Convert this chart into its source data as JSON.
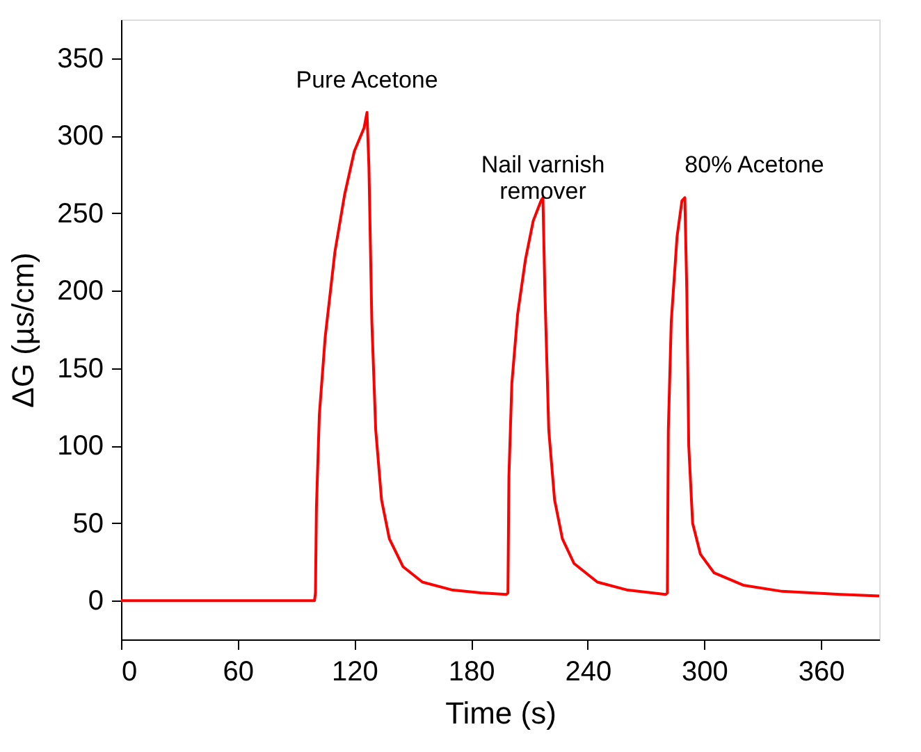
{
  "chart_data": {
    "type": "line",
    "xlabel": "Time (s)",
    "ylabel": "ΔG (µs/cm)",
    "xlim": [
      0,
      390
    ],
    "ylim": [
      -25,
      375
    ],
    "xticks": [
      0,
      60,
      120,
      180,
      240,
      300,
      360
    ],
    "yticks": [
      0,
      50,
      100,
      150,
      200,
      250,
      300,
      350
    ],
    "grid": false,
    "legend": false,
    "marker": "none",
    "line_style": "solid",
    "x": [
      0,
      20,
      40,
      60,
      80,
      99.5,
      100,
      100.5,
      102,
      105,
      110,
      115,
      120,
      125,
      126.5,
      127.5,
      129,
      131,
      134,
      138,
      145,
      155,
      170,
      185,
      198,
      199,
      199.5,
      201,
      204,
      208,
      212,
      216,
      217,
      218,
      220,
      223,
      227,
      233,
      245,
      260,
      280,
      281,
      281.5,
      283,
      286,
      288.5,
      290,
      291,
      292,
      294,
      298,
      305,
      320,
      340,
      370,
      390
    ],
    "series": [
      {
        "color": "#ff0000",
        "values": [
          0,
          0,
          0,
          0,
          0,
          0,
          5,
          60,
          120,
          170,
          225,
          262,
          290,
          305,
          315,
          280,
          180,
          110,
          65,
          40,
          22,
          12,
          7,
          5,
          4,
          5,
          80,
          140,
          185,
          220,
          245,
          258,
          260,
          200,
          110,
          65,
          40,
          24,
          12,
          7,
          4,
          5,
          110,
          180,
          235,
          258,
          260,
          200,
          100,
          50,
          30,
          18,
          10,
          6,
          4,
          3
        ]
      }
    ],
    "annotations": [
      {
        "text": "Pure Acetone",
        "x": 126.5,
        "y": 315
      },
      {
        "text": "Nail varnish\nremover",
        "x": 217,
        "y": 260
      },
      {
        "text": "80% Acetone",
        "x": 290,
        "y": 260
      }
    ]
  }
}
